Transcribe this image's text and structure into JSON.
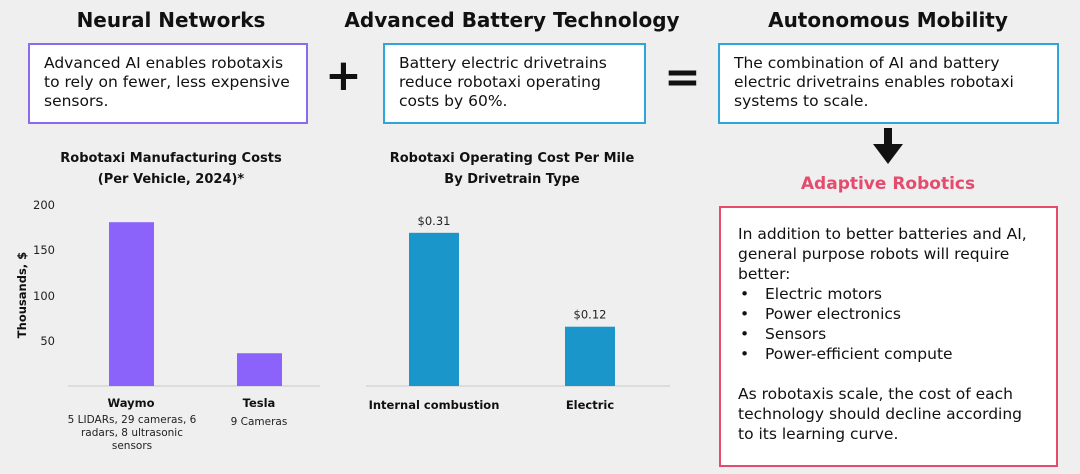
{
  "columns": [
    {
      "title": "Neural Networks",
      "text": "Advanced AI enables robotaxis to rely on fewer, less expensive sensors."
    },
    {
      "title": "Advanced Battery Technology",
      "text": "Battery electric drivetrains reduce robotaxi operating costs by 60%."
    },
    {
      "title": "Autonomous Mobility",
      "text": "The combination of AI and battery electric drivetrains enables robotaxi systems to scale."
    }
  ],
  "operators": {
    "plus": "+",
    "equals": "="
  },
  "adaptive": {
    "heading": "Adaptive Robotics",
    "intro": "In addition to better batteries and AI, general purpose robots will require better:",
    "bullets": [
      "Electric motors",
      "Power electronics",
      "Sensors",
      "Power-efficient compute"
    ],
    "outro": "As robotaxis scale, the cost of each technology should decline according to its learning curve."
  },
  "colors": {
    "purple_bar": "#8b63fb",
    "blue_bar": "#1b96cb",
    "red": "#e44b6d"
  },
  "chart_data": [
    {
      "type": "bar",
      "title_line1": "Robotaxi Manufacturing Costs",
      "title_line2": "(Per Vehicle, 2024)*",
      "ylabel": "Thousands, $",
      "ylim": [
        0,
        200
      ],
      "yticks": [
        "200",
        "150",
        "100",
        "50"
      ],
      "categories": [
        "Waymo",
        "Tesla"
      ],
      "subtitles": [
        "5 LIDARs, 29 cameras, 6 radars, 8 ultrasonic sensors",
        "9 Cameras"
      ],
      "values": [
        180,
        36
      ]
    },
    {
      "type": "bar",
      "title_line1": "Robotaxi Operating Cost Per Mile",
      "title_line2": "By Drivetrain Type",
      "ylim": [
        0,
        0.34
      ],
      "categories": [
        "Internal combustion",
        "Electric"
      ],
      "values": [
        0.31,
        0.12
      ],
      "value_labels": [
        "$0.31",
        "$0.12"
      ]
    }
  ]
}
